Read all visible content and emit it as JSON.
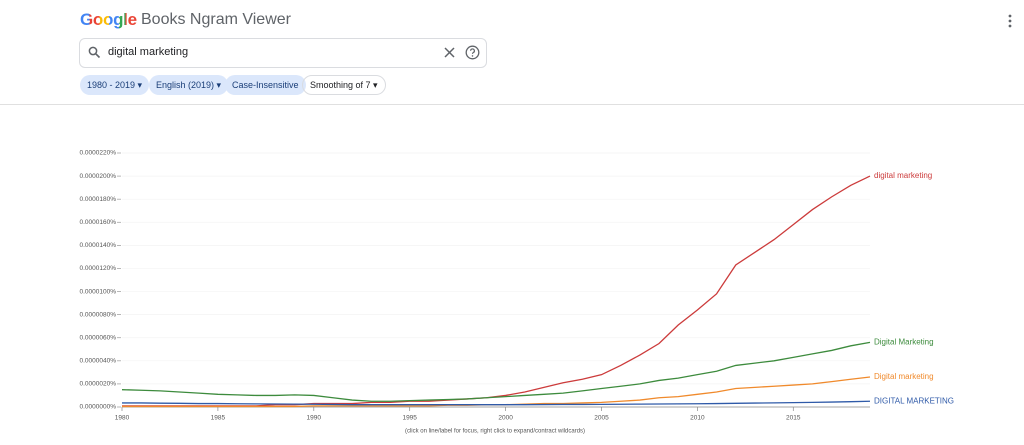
{
  "header": {
    "logo": "Google",
    "title": "Books Ngram Viewer"
  },
  "search": {
    "query": "digital marketing"
  },
  "chips": [
    "1980 - 2019",
    "English (2019)",
    "Case-Insensitive",
    "Smoothing of 7"
  ],
  "chart_data": {
    "type": "line",
    "note": "(click on line/label for focus, right click to expand/contract wildcards)",
    "x": [
      1980,
      1981,
      1982,
      1983,
      1984,
      1985,
      1986,
      1987,
      1988,
      1989,
      1990,
      1991,
      1992,
      1993,
      1994,
      1995,
      1996,
      1997,
      1998,
      1999,
      2000,
      2001,
      2002,
      2003,
      2004,
      2005,
      2006,
      2007,
      2008,
      2009,
      2010,
      2011,
      2012,
      2013,
      2014,
      2015,
      2016,
      2017,
      2018,
      2019
    ],
    "xlim": [
      1980,
      2019
    ],
    "xticks": [
      1980,
      1985,
      1990,
      1995,
      2000,
      2005,
      2010,
      2015
    ],
    "ylim": [
      0,
      2.2e-05
    ],
    "yticks": [
      {
        "value": 0,
        "label": "0.0000000%"
      },
      {
        "value": 2e-06,
        "label": "0.0000020%"
      },
      {
        "value": 4e-06,
        "label": "0.0000040%"
      },
      {
        "value": 6e-06,
        "label": "0.0000060%"
      },
      {
        "value": 8e-06,
        "label": "0.0000080%"
      },
      {
        "value": 1e-05,
        "label": "0.0000100%"
      },
      {
        "value": 1.2e-05,
        "label": "0.0000120%"
      },
      {
        "value": 1.4e-05,
        "label": "0.0000140%"
      },
      {
        "value": 1.6e-05,
        "label": "0.0000160%"
      },
      {
        "value": 1.8e-05,
        "label": "0.0000180%"
      },
      {
        "value": 2e-05,
        "label": "0.0000200%"
      },
      {
        "value": 2.2e-05,
        "label": "0.0000220%"
      }
    ],
    "series": [
      {
        "name": "digital marketing",
        "color": "#cc3b3b",
        "values": [
          1e-07,
          1e-07,
          1e-07,
          1e-07,
          1e-07,
          1e-07,
          1e-07,
          1e-07,
          2e-07,
          2e-07,
          3e-07,
          3e-07,
          3e-07,
          4e-07,
          4e-07,
          5e-07,
          5e-07,
          6e-07,
          7e-07,
          8e-07,
          1e-06,
          1.3e-06,
          1.7e-06,
          2.1e-06,
          2.4e-06,
          2.8e-06,
          3.6e-06,
          4.5e-06,
          5.5e-06,
          7.1e-06,
          8.4e-06,
          9.8e-06,
          1.23e-05,
          1.34e-05,
          1.45e-05,
          1.58e-05,
          1.71e-05,
          1.82e-05,
          1.92e-05,
          2e-05
        ]
      },
      {
        "name": "Digital Marketing",
        "color": "#3d8b3d",
        "values": [
          1.5e-06,
          1.45e-06,
          1.4e-06,
          1.3e-06,
          1.2e-06,
          1.1e-06,
          1.05e-06,
          1e-06,
          1e-06,
          1.05e-06,
          1e-06,
          8e-07,
          6e-07,
          5e-07,
          5e-07,
          5.5e-07,
          6e-07,
          6.5e-07,
          7e-07,
          8e-07,
          9e-07,
          1e-06,
          1.1e-06,
          1.2e-06,
          1.4e-06,
          1.6e-06,
          1.8e-06,
          2e-06,
          2.3e-06,
          2.5e-06,
          2.8e-06,
          3.1e-06,
          3.6e-06,
          3.8e-06,
          4e-06,
          4.3e-06,
          4.6e-06,
          4.9e-06,
          5.3e-06,
          5.6e-06
        ]
      },
      {
        "name": "Digital marketing",
        "color": "#f08a2c",
        "values": [
          5e-08,
          5e-08,
          5e-08,
          5e-08,
          5e-08,
          5e-08,
          5e-08,
          5e-08,
          5e-08,
          5e-08,
          1e-07,
          1e-07,
          1e-07,
          1e-07,
          1e-07,
          1e-07,
          1e-07,
          1.5e-07,
          1.5e-07,
          2e-07,
          2e-07,
          2.5e-07,
          3e-07,
          3e-07,
          3.5e-07,
          4e-07,
          5e-07,
          6e-07,
          8e-07,
          9e-07,
          1.1e-06,
          1.3e-06,
          1.6e-06,
          1.7e-06,
          1.8e-06,
          1.9e-06,
          2e-06,
          2.2e-06,
          2.4e-06,
          2.6e-06
        ]
      },
      {
        "name": "DIGITAL MARKETING",
        "color": "#2f5aa8",
        "values": [
          3.5e-07,
          3.5e-07,
          3.3e-07,
          3.2e-07,
          3e-07,
          3e-07,
          2.8e-07,
          2.7e-07,
          2.6e-07,
          2.5e-07,
          2.4e-07,
          2.2e-07,
          2e-07,
          2e-07,
          2e-07,
          2e-07,
          2e-07,
          2e-07,
          2e-07,
          2e-07,
          2e-07,
          2e-07,
          2.1e-07,
          2.2e-07,
          2.2e-07,
          2.3e-07,
          2.4e-07,
          2.5e-07,
          2.6e-07,
          2.7e-07,
          2.8e-07,
          3e-07,
          3.2e-07,
          3.4e-07,
          3.6e-07,
          3.8e-07,
          4e-07,
          4.3e-07,
          4.6e-07,
          5e-07
        ]
      }
    ]
  }
}
